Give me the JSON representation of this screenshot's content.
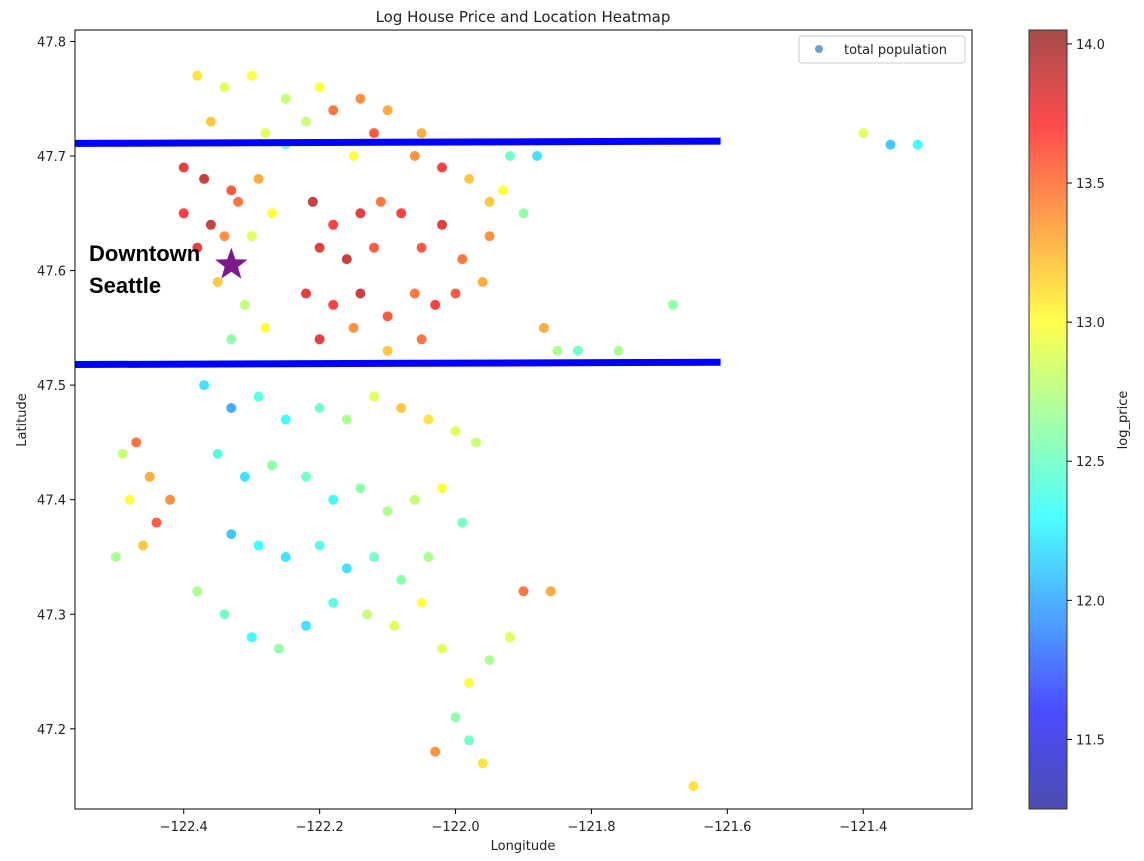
{
  "chart_data": {
    "type": "scatter",
    "title": "Log House Price and Location Heatmap",
    "xlabel": "Longitude",
    "ylabel": "Latitude",
    "xlim": [
      -122.56,
      -121.24
    ],
    "ylim": [
      47.13,
      47.81
    ],
    "xticks": [
      -122.4,
      -122.2,
      -122.0,
      -121.8,
      -121.6,
      -121.4
    ],
    "xtick_labels": [
      "−122.4",
      "−122.2",
      "−122.0",
      "−121.8",
      "−121.6",
      "−121.4"
    ],
    "yticks": [
      47.2,
      47.3,
      47.4,
      47.5,
      47.6,
      47.7,
      47.8
    ],
    "ytick_labels": [
      "47.2",
      "47.3",
      "47.4",
      "47.5",
      "47.6",
      "47.7",
      "47.8"
    ],
    "grid": false,
    "legend": {
      "label": "total population",
      "position": "top-right"
    },
    "colorbar": {
      "label": "log_price",
      "range": [
        11.25,
        14.05
      ],
      "ticks": [
        "14.0",
        "13.5",
        "13.0",
        "12.5",
        "12.0",
        "11.5"
      ],
      "tick_values": [
        14.0,
        13.5,
        13.0,
        12.5,
        12.0,
        11.5
      ],
      "colormap": "jet"
    },
    "hlines": [
      {
        "x": [
          -122.56,
          -121.61
        ],
        "y": [
          47.711,
          47.713
        ],
        "color": "#0000ff"
      },
      {
        "x": [
          -122.56,
          -121.61
        ],
        "y": [
          47.518,
          47.52
        ],
        "color": "#0000ff"
      }
    ],
    "annotation": {
      "text_line1": "Downtown",
      "text_line2": "Seattle",
      "marker": "star",
      "marker_color": "#7b1a88",
      "x": -122.33,
      "y": 47.605
    },
    "points": [
      [
        -122.38,
        47.77,
        13.1
      ],
      [
        -122.34,
        47.76,
        12.9
      ],
      [
        -122.3,
        47.77,
        13.0
      ],
      [
        -122.25,
        47.75,
        12.8
      ],
      [
        -122.2,
        47.76,
        13.0
      ],
      [
        -122.14,
        47.75,
        13.4
      ],
      [
        -122.1,
        47.74,
        13.3
      ],
      [
        -122.36,
        47.73,
        13.2
      ],
      [
        -122.28,
        47.72,
        12.9
      ],
      [
        -122.22,
        47.73,
        12.8
      ],
      [
        -122.18,
        47.74,
        13.5
      ],
      [
        -122.12,
        47.72,
        13.6
      ],
      [
        -122.06,
        47.7,
        13.4
      ],
      [
        -122.02,
        47.69,
        13.7
      ],
      [
        -121.98,
        47.68,
        13.2
      ],
      [
        -122.4,
        47.69,
        13.8
      ],
      [
        -122.37,
        47.68,
        13.9
      ],
      [
        -122.33,
        47.67,
        13.6
      ],
      [
        -122.29,
        47.68,
        13.3
      ],
      [
        -122.4,
        47.65,
        13.7
      ],
      [
        -122.36,
        47.64,
        13.9
      ],
      [
        -122.32,
        47.66,
        13.5
      ],
      [
        -122.27,
        47.65,
        13.0
      ],
      [
        -122.38,
        47.62,
        13.8
      ],
      [
        -122.34,
        47.63,
        13.4
      ],
      [
        -122.3,
        47.63,
        12.9
      ],
      [
        -122.21,
        47.66,
        13.9
      ],
      [
        -122.18,
        47.64,
        13.7
      ],
      [
        -122.14,
        47.65,
        13.8
      ],
      [
        -122.11,
        47.66,
        13.5
      ],
      [
        -122.2,
        47.62,
        13.8
      ],
      [
        -122.16,
        47.61,
        13.9
      ],
      [
        -122.12,
        47.62,
        13.6
      ],
      [
        -122.08,
        47.65,
        13.7
      ],
      [
        -122.05,
        47.62,
        13.6
      ],
      [
        -122.02,
        47.64,
        13.8
      ],
      [
        -121.99,
        47.61,
        13.5
      ],
      [
        -121.95,
        47.63,
        13.4
      ],
      [
        -122.22,
        47.58,
        13.8
      ],
      [
        -122.18,
        47.57,
        13.7
      ],
      [
        -122.14,
        47.58,
        13.9
      ],
      [
        -122.1,
        47.56,
        13.6
      ],
      [
        -122.06,
        47.58,
        13.5
      ],
      [
        -122.03,
        47.57,
        13.7
      ],
      [
        -122.0,
        47.58,
        13.6
      ],
      [
        -121.96,
        47.59,
        13.3
      ],
      [
        -122.2,
        47.54,
        13.8
      ],
      [
        -122.15,
        47.55,
        13.4
      ],
      [
        -122.1,
        47.53,
        13.2
      ],
      [
        -122.05,
        47.54,
        13.5
      ],
      [
        -122.35,
        47.59,
        13.2
      ],
      [
        -122.31,
        47.57,
        12.8
      ],
      [
        -122.28,
        47.55,
        13.0
      ],
      [
        -122.33,
        47.54,
        12.6
      ],
      [
        -121.93,
        47.67,
        13.0
      ],
      [
        -121.92,
        47.7,
        12.5
      ],
      [
        -121.88,
        47.7,
        12.2
      ],
      [
        -121.9,
        47.65,
        12.6
      ],
      [
        -121.87,
        47.55,
        13.3
      ],
      [
        -121.85,
        47.53,
        12.7
      ],
      [
        -121.82,
        47.53,
        12.5
      ],
      [
        -121.76,
        47.53,
        12.7
      ],
      [
        -121.68,
        47.57,
        12.6
      ],
      [
        -121.4,
        47.72,
        12.9
      ],
      [
        -121.36,
        47.71,
        12.1
      ],
      [
        -121.32,
        47.71,
        12.3
      ],
      [
        -122.37,
        47.5,
        12.2
      ],
      [
        -122.33,
        47.48,
        12.0
      ],
      [
        -122.29,
        47.49,
        12.4
      ],
      [
        -122.25,
        47.47,
        12.3
      ],
      [
        -122.2,
        47.48,
        12.5
      ],
      [
        -122.16,
        47.47,
        12.7
      ],
      [
        -122.12,
        47.49,
        12.9
      ],
      [
        -122.08,
        47.48,
        13.2
      ],
      [
        -122.04,
        47.47,
        13.1
      ],
      [
        -122.0,
        47.46,
        12.9
      ],
      [
        -121.97,
        47.45,
        12.8
      ],
      [
        -122.35,
        47.44,
        12.4
      ],
      [
        -122.31,
        47.42,
        12.2
      ],
      [
        -122.27,
        47.43,
        12.6
      ],
      [
        -122.22,
        47.42,
        12.5
      ],
      [
        -122.18,
        47.4,
        12.3
      ],
      [
        -122.14,
        47.41,
        12.6
      ],
      [
        -122.1,
        47.39,
        12.7
      ],
      [
        -122.06,
        47.4,
        12.8
      ],
      [
        -122.02,
        47.41,
        13.0
      ],
      [
        -121.99,
        47.38,
        12.5
      ],
      [
        -122.33,
        47.37,
        12.1
      ],
      [
        -122.29,
        47.36,
        12.3
      ],
      [
        -122.25,
        47.35,
        12.2
      ],
      [
        -122.2,
        47.36,
        12.4
      ],
      [
        -122.16,
        47.34,
        12.2
      ],
      [
        -122.12,
        47.35,
        12.5
      ],
      [
        -122.08,
        47.33,
        12.6
      ],
      [
        -122.04,
        47.35,
        12.7
      ],
      [
        -122.38,
        47.32,
        12.7
      ],
      [
        -122.34,
        47.3,
        12.5
      ],
      [
        -122.3,
        47.28,
        12.3
      ],
      [
        -122.26,
        47.27,
        12.6
      ],
      [
        -122.22,
        47.29,
        12.2
      ],
      [
        -122.18,
        47.31,
        12.4
      ],
      [
        -122.13,
        47.3,
        12.8
      ],
      [
        -122.09,
        47.29,
        12.9
      ],
      [
        -122.05,
        47.31,
        13.0
      ],
      [
        -122.02,
        47.27,
        12.9
      ],
      [
        -121.98,
        47.24,
        13.0
      ],
      [
        -121.95,
        47.26,
        12.7
      ],
      [
        -122.0,
        47.21,
        12.6
      ],
      [
        -121.98,
        47.19,
        12.5
      ],
      [
        -121.96,
        47.17,
        13.1
      ],
      [
        -122.03,
        47.18,
        13.4
      ],
      [
        -122.47,
        47.45,
        13.5
      ],
      [
        -122.45,
        47.42,
        13.3
      ],
      [
        -122.48,
        47.4,
        13.0
      ],
      [
        -122.44,
        47.38,
        13.6
      ],
      [
        -122.5,
        47.35,
        12.7
      ],
      [
        -122.46,
        47.36,
        13.2
      ],
      [
        -122.42,
        47.4,
        13.4
      ],
      [
        -122.49,
        47.44,
        12.8
      ],
      [
        -121.9,
        47.32,
        13.5
      ],
      [
        -121.86,
        47.32,
        13.3
      ],
      [
        -121.92,
        47.28,
        12.9
      ],
      [
        -121.65,
        47.15,
        13.1
      ],
      [
        -122.25,
        47.71,
        12.6
      ],
      [
        -122.15,
        47.7,
        13.0
      ],
      [
        -122.05,
        47.72,
        13.3
      ],
      [
        -121.95,
        47.66,
        13.2
      ]
    ]
  }
}
